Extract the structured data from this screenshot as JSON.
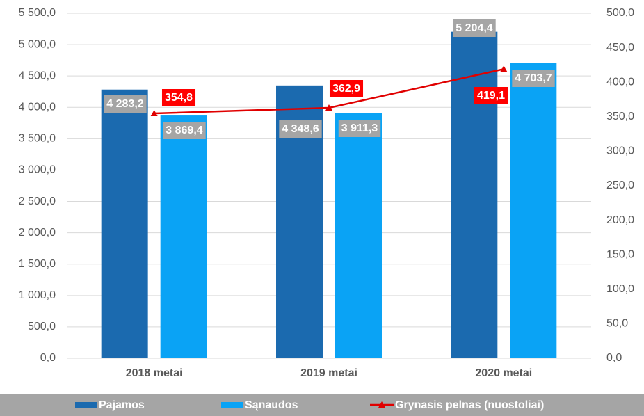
{
  "chart_data": {
    "type": "bar",
    "categories": [
      "2018 metai",
      "2019 metai",
      "2020 metai"
    ],
    "series": [
      {
        "name": "Pajamos",
        "color": "#1b6aaf",
        "type": "bar",
        "values": [
          4283.2,
          4348.6,
          5204.4
        ],
        "value_labels": [
          "4 283,2",
          "4 348,6",
          "5 204,4"
        ]
      },
      {
        "name": "Sąnaudos",
        "color": "#0aa3f5",
        "type": "bar",
        "values": [
          3869.4,
          3911.3,
          4703.7
        ],
        "value_labels": [
          "3 869,4",
          "3 911,3",
          "4 703,7"
        ]
      },
      {
        "name": "Grynasis pelnas (nuostoliai)",
        "color": "#e00000",
        "type": "line",
        "axis": "y2",
        "values": [
          354.8,
          362.9,
          419.1
        ],
        "value_labels": [
          "354,8",
          "362,9",
          "419,1"
        ]
      }
    ],
    "ylim": [
      0,
      5500
    ],
    "yticks": [
      {
        "value": 0,
        "label": "0,0"
      },
      {
        "value": 500,
        "label": "500,0"
      },
      {
        "value": 1000,
        "label": "1 000,0"
      },
      {
        "value": 1500,
        "label": "1 500,0"
      },
      {
        "value": 2000,
        "label": "2 000,0"
      },
      {
        "value": 2500,
        "label": "2 500,0"
      },
      {
        "value": 3000,
        "label": "3 000,0"
      },
      {
        "value": 3500,
        "label": "3 500,0"
      },
      {
        "value": 4000,
        "label": "4 000,0"
      },
      {
        "value": 4500,
        "label": "4 500,0"
      },
      {
        "value": 5000,
        "label": "5 000,0"
      },
      {
        "value": 5500,
        "label": "5 500,0"
      }
    ],
    "y2lim": [
      0,
      500
    ],
    "y2ticks": [
      {
        "value": 0,
        "label": "0,0"
      },
      {
        "value": 50,
        "label": "50,0"
      },
      {
        "value": 100,
        "label": "100,0"
      },
      {
        "value": 150,
        "label": "150,0"
      },
      {
        "value": 200,
        "label": "200,0"
      },
      {
        "value": 250,
        "label": "250,0"
      },
      {
        "value": 300,
        "label": "300,0"
      },
      {
        "value": 350,
        "label": "350,0"
      },
      {
        "value": 400,
        "label": "400,0"
      },
      {
        "value": 450,
        "label": "450,0"
      },
      {
        "value": 500,
        "label": "500,0"
      }
    ],
    "grid": true,
    "legend": "bottom"
  }
}
